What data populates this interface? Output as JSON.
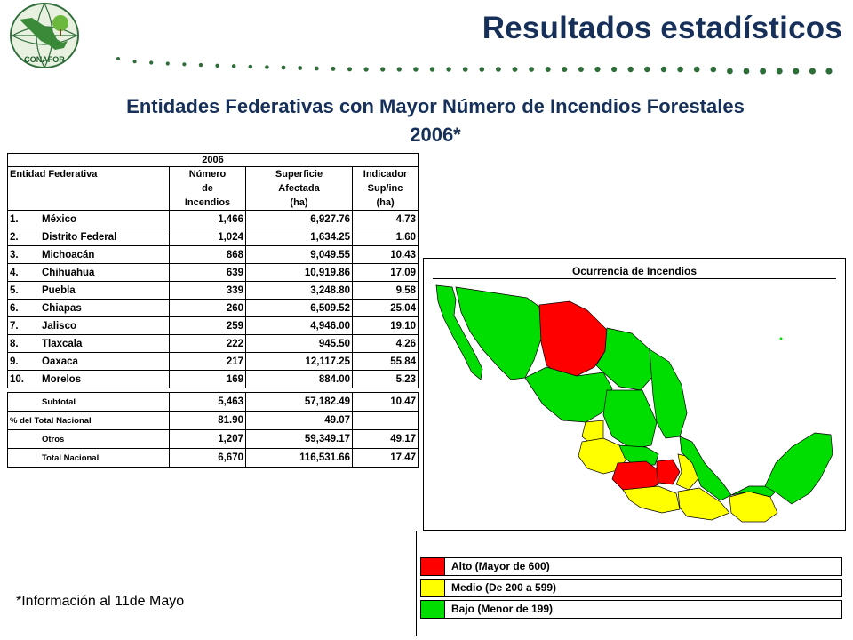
{
  "header": {
    "logo_text": "CONAFOR",
    "title": "Resultados estadísticos"
  },
  "subtitle": {
    "line1": "Entidades Federativas con Mayor Número de Incendios Forestales",
    "line2": "2006*"
  },
  "table": {
    "year": "2006",
    "headers": {
      "col1": "Entidad Federativa",
      "col2": [
        "Número",
        "de",
        "Incendios"
      ],
      "col3": [
        "Superficie",
        "Afectada",
        "(ha)"
      ],
      "col4": [
        "Indicador",
        "Sup/inc",
        "(ha)"
      ]
    },
    "rows": [
      {
        "num": "1.",
        "name": "México",
        "incendios": "1,466",
        "superficie": "6,927.76",
        "indicador": "4.73"
      },
      {
        "num": "2.",
        "name": "Distrito Federal",
        "incendios": "1,024",
        "superficie": "1,634.25",
        "indicador": "1.60"
      },
      {
        "num": "3.",
        "name": "Michoacán",
        "incendios": "868",
        "superficie": "9,049.55",
        "indicador": "10.43"
      },
      {
        "num": "4.",
        "name": "Chihuahua",
        "incendios": "639",
        "superficie": "10,919.86",
        "indicador": "17.09"
      },
      {
        "num": "5.",
        "name": "Puebla",
        "incendios": "339",
        "superficie": "3,248.80",
        "indicador": "9.58"
      },
      {
        "num": "6.",
        "name": "Chiapas",
        "incendios": "260",
        "superficie": "6,509.52",
        "indicador": "25.04"
      },
      {
        "num": "7.",
        "name": "Jalisco",
        "incendios": "259",
        "superficie": "4,946.00",
        "indicador": "19.10"
      },
      {
        "num": "8.",
        "name": "Tlaxcala",
        "incendios": "222",
        "superficie": "945.50",
        "indicador": "4.26"
      },
      {
        "num": "9.",
        "name": "Oaxaca",
        "incendios": "217",
        "superficie": "12,117.25",
        "indicador": "55.84"
      },
      {
        "num": "10.",
        "name": "Morelos",
        "incendios": "169",
        "superficie": "884.00",
        "indicador": "5.23"
      }
    ],
    "summary": [
      {
        "label": "Subtotal",
        "incendios": "5,463",
        "superficie": "57,182.49",
        "indicador": "10.47"
      },
      {
        "label": "% del Total Nacional",
        "incendios": "81.90",
        "superficie": "49.07",
        "indicador": ""
      },
      {
        "label": "Otros",
        "incendios": "1,207",
        "superficie": "59,349.17",
        "indicador": "49.17"
      },
      {
        "label": "Total Nacional",
        "incendios": "6,670",
        "superficie": "116,531.66",
        "indicador": "17.47"
      }
    ]
  },
  "map": {
    "title": "Ocurrencia de Incendios",
    "colors": {
      "alto": "#ff0000",
      "medio": "#ffff00",
      "bajo": "#00dd00"
    }
  },
  "legend": [
    {
      "label": "Alto (Mayor de 600)",
      "color": "#ff0000"
    },
    {
      "label": "Medio (De 200 a 599)",
      "color": "#ffff00"
    },
    {
      "label": "Bajo (Menor de 199)",
      "color": "#00dd00"
    }
  ],
  "footnote": "*Información al 11de Mayo"
}
